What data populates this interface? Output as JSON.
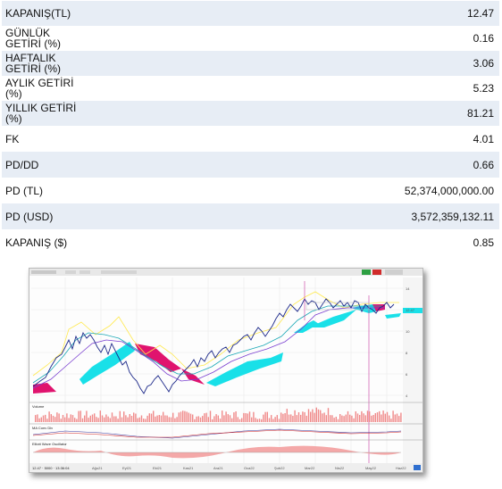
{
  "rows": [
    {
      "label": "KAPANIŞ(TL)",
      "value": "12.47"
    },
    {
      "label": "GÜNLÜK\nGETİRİ (%)",
      "value": "0.16"
    },
    {
      "label": "HAFTALIK\nGETİRİ (%)",
      "value": "3.06"
    },
    {
      "label": "AYLIK GETİRİ\n(%)",
      "value": "5.23"
    },
    {
      "label": "YILLIK GETİRİ\n(%)",
      "value": "81.21"
    },
    {
      "label": "FK",
      "value": "4.01"
    },
    {
      "label": "PD/DD",
      "value": "0.66"
    },
    {
      "label": "PD (TL)",
      "value": "52,374,000,000.00"
    },
    {
      "label": "PD (USD)",
      "value": "3,572,359,132.11"
    },
    {
      "label": "KAPANIŞ ($)",
      "value": "0.85"
    }
  ],
  "chart": {
    "panels": {
      "volume": "Volume",
      "ma": "MA Conv Div",
      "elliott": "Elliott Wave Oscillator"
    },
    "footer": "12.47 · 5000 · 13:36:04",
    "x_ticks": [
      "Ağu21",
      "Eyl21",
      "Eki21",
      "Kas21",
      "Ara21",
      "Oca22",
      "Şub22",
      "Mar22",
      "Nis22",
      "May22",
      "Haz22"
    ],
    "colors": {
      "price": "#1e2a8a",
      "cloud_up": "#19e0e8",
      "cloud_down": "#e0136e",
      "vol": "#f08a8a",
      "accent": "#ffe94d"
    }
  }
}
